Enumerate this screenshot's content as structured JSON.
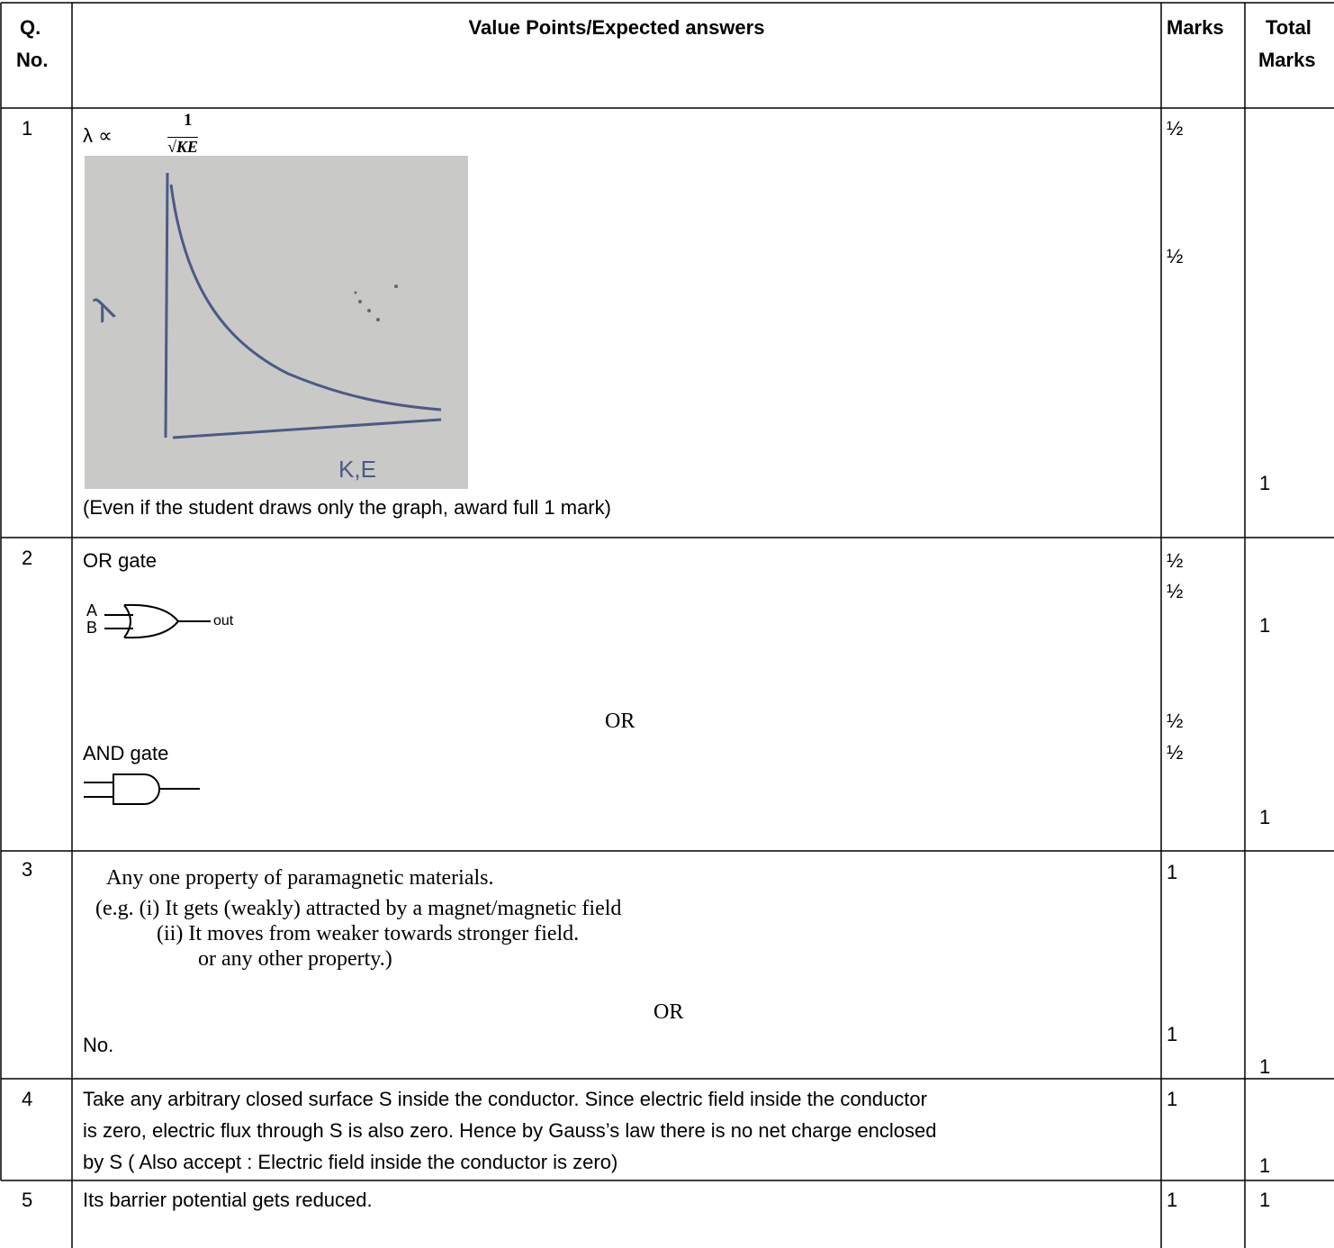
{
  "table": {
    "header": [
      "Q.",
      "No.",
      "Value Points/Expected answers",
      "Marks",
      "Total",
      "Marks"
    ],
    "rows": [
      {
        "q": "1",
        "formula": [
          "λ ∝",
          "1",
          "√KE"
        ],
        "graph": [
          "λ",
          "K,E"
        ],
        "note": "(Even if the student draws only the graph, award full 1 mark)",
        "marks": [
          "½",
          "½"
        ],
        "total": [
          "1"
        ]
      },
      {
        "q": "2",
        "lines": [
          "OR gate",
          "OR",
          "AND gate"
        ],
        "gate": [
          "A",
          "B",
          "out"
        ],
        "marks": [
          "½",
          "½",
          "½",
          "½"
        ],
        "total": [
          "1",
          "1"
        ]
      },
      {
        "q": "3",
        "lines": [
          "Any one property of paramagnetic materials.",
          "(e.g. (i) It gets (weakly) attracted by a magnet/magnetic field",
          "(ii) It moves from weaker towards stronger field.",
          "or any other property.)",
          "OR",
          "No."
        ],
        "marks": [
          "1",
          "1"
        ],
        "total": [
          "1"
        ]
      },
      {
        "q": "4",
        "lines": [
          "Take any arbitrary closed surface S inside the conductor. Since electric field inside the conductor",
          "is zero, electric flux through S is also zero. Hence by Gauss’s law there is no net charge enclosed",
          "by S ( Also accept : Electric field inside the conductor is zero)"
        ],
        "marks": [
          "1"
        ],
        "total": [
          "1"
        ]
      },
      {
        "q": "5",
        "lines": [
          "Its barrier potential gets reduced."
        ],
        "marks": [
          "1"
        ],
        "total": [
          "1"
        ]
      }
    ]
  }
}
